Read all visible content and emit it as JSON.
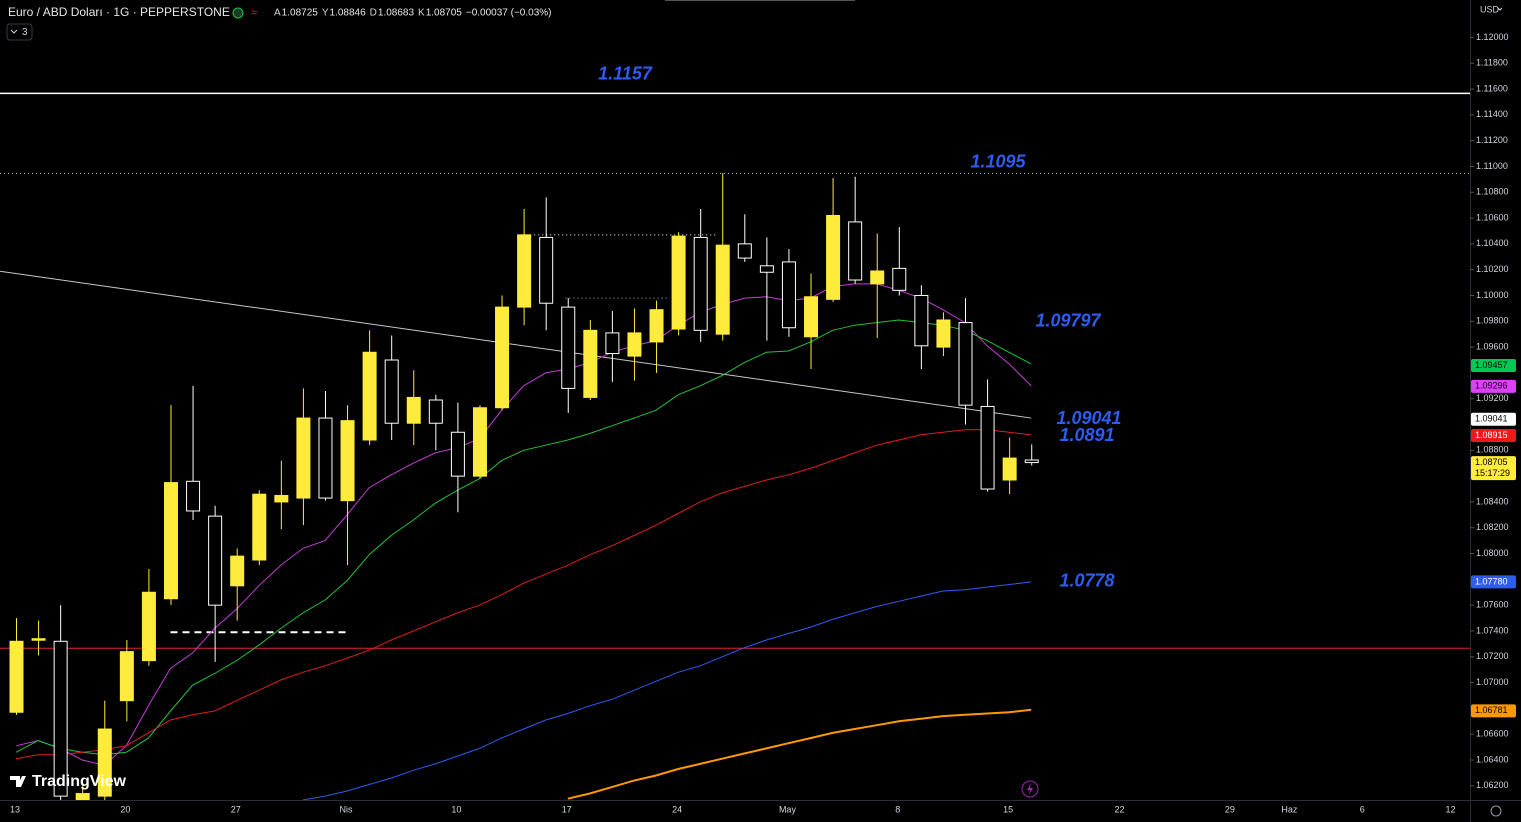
{
  "chart_data": {
    "type": "candlestick",
    "title": "Euro / ABD Doları · 1G · PEPPERSTONE",
    "ohlc_legend": [
      {
        "label": "A",
        "value": 1.08725
      },
      {
        "label": "Y",
        "value": 1.08846
      },
      {
        "label": "D",
        "value": 1.08683
      },
      {
        "label": "K",
        "value": 1.08705
      }
    ],
    "change_text": "−0.00037 (−0.03%)",
    "indicators_collapsed": "3",
    "currency": "USD",
    "logo": "TradingView",
    "up_color": "#ffeb3b",
    "down_color": "#ffffff",
    "categories": [
      "13",
      null,
      null,
      null,
      null,
      "20",
      null,
      null,
      null,
      null,
      "27",
      null,
      null,
      null,
      null,
      "Nis",
      null,
      null,
      null,
      null,
      "10",
      null,
      null,
      null,
      null,
      "17",
      null,
      null,
      null,
      null,
      "24",
      null,
      null,
      null,
      null,
      "May",
      null,
      null,
      null,
      null,
      "8",
      null,
      null,
      null,
      null,
      "15",
      null
    ],
    "future_xticks": [
      {
        "index": 50,
        "label": "22"
      },
      {
        "index": 55,
        "label": "29"
      },
      {
        "index": 57.7,
        "label": "Haz"
      },
      {
        "index": 61,
        "label": "6"
      },
      {
        "index": 65,
        "label": "12"
      }
    ],
    "open": [
      1.0677,
      1.0733,
      1.0732,
      1.0608,
      1.0612,
      1.0686,
      1.0717,
      1.0765,
      1.0856,
      1.0829,
      1.0775,
      1.0795,
      1.084,
      1.0843,
      1.0905,
      1.0841,
      1.0888,
      1.095,
      1.0901,
      1.0919,
      1.0894,
      1.086,
      1.0913,
      1.0991,
      1.1045,
      1.0991,
      1.0921,
      1.0971,
      1.0953,
      1.0964,
      1.0974,
      1.1045,
      1.097,
      1.104,
      1.1023,
      1.1026,
      1.0968,
      1.0997,
      1.1057,
      1.1009,
      1.1021,
      1.1,
      1.096,
      1.0979,
      1.0914,
      1.0857,
      1.08725
    ],
    "high": [
      1.075,
      1.0748,
      1.076,
      1.062,
      1.0686,
      1.0733,
      1.0788,
      1.0915,
      1.093,
      1.0837,
      1.0804,
      1.0849,
      1.0872,
      1.0928,
      1.0926,
      1.0915,
      1.0973,
      1.0969,
      1.0942,
      1.0923,
      1.0917,
      1.0915,
      1.1,
      1.1067,
      1.1076,
      1.0998,
      1.0981,
      1.0988,
      1.099,
      1.0996,
      1.1049,
      1.1067,
      1.1095,
      1.1063,
      1.1045,
      1.1036,
      1.1017,
      1.1091,
      1.1092,
      1.1048,
      1.1053,
      1.1008,
      1.0987,
      1.0998,
      1.0935,
      1.089,
      1.08846
    ],
    "low": [
      1.0675,
      1.0721,
      1.0608,
      1.0604,
      1.0606,
      1.067,
      1.0713,
      1.076,
      1.0826,
      1.0716,
      1.0748,
      1.0791,
      1.0819,
      1.0822,
      1.0841,
      1.0791,
      1.0884,
      1.0888,
      1.0884,
      1.088,
      1.0832,
      1.0858,
      1.0911,
      1.0977,
      1.0973,
      1.0909,
      1.0919,
      1.0933,
      1.0934,
      1.094,
      1.0969,
      1.0964,
      1.0965,
      1.1026,
      1.0965,
      1.0968,
      1.0943,
      1.0995,
      1.1009,
      1.0967,
      1.1,
      1.0943,
      1.0953,
      1.09,
      1.0848,
      1.0846,
      1.08683
    ],
    "close": [
      1.0732,
      1.0734,
      1.0612,
      1.0614,
      1.0664,
      1.0724,
      1.077,
      1.0855,
      1.0833,
      1.076,
      1.0798,
      1.0846,
      1.0845,
      1.0905,
      1.0843,
      1.0903,
      1.0956,
      1.0901,
      1.0921,
      1.0901,
      1.086,
      1.0913,
      1.0991,
      1.1047,
      1.0994,
      1.0928,
      1.0973,
      1.0955,
      1.0971,
      1.0989,
      1.1046,
      1.0973,
      1.1039,
      1.1029,
      1.1018,
      1.0975,
      1.0999,
      1.1062,
      1.1012,
      1.1019,
      1.1004,
      1.0961,
      1.0981,
      1.0915,
      1.085,
      1.0874,
      1.08705
    ],
    "series": [
      {
        "color": "#c43ed6",
        "width": 1,
        "values": [
          1.0651,
          1.0655,
          1.0649,
          1.064,
          1.0636,
          1.0651,
          1.0682,
          1.0711,
          1.0723,
          1.0742,
          1.0757,
          1.0775,
          1.0791,
          1.0804,
          1.081,
          1.083,
          1.0851,
          1.0861,
          1.087,
          1.0878,
          1.0882,
          1.0889,
          1.0911,
          1.093,
          1.094,
          1.0943,
          1.0948,
          1.0956,
          1.0961,
          1.0965,
          1.0977,
          1.0987,
          1.0993,
          1.0998,
          1.0999,
          1.0996,
          1.0998,
          1.1007,
          1.1009,
          1.1009,
          1.1004,
          1.0998,
          1.0989,
          1.0979,
          1.0961,
          1.0947,
          1.093
        ]
      },
      {
        "color": "#22c33a",
        "width": 1,
        "values": [
          1.0646,
          1.0655,
          1.0649,
          1.0646,
          1.0644,
          1.0646,
          1.0657,
          1.0678,
          1.0698,
          1.0707,
          1.0717,
          1.0729,
          1.0742,
          1.0754,
          1.0764,
          1.0779,
          1.0799,
          1.0814,
          1.0826,
          1.0839,
          1.0849,
          1.0858,
          1.0872,
          1.088,
          1.0884,
          1.0888,
          1.0893,
          1.0899,
          1.0905,
          1.0911,
          1.0923,
          1.093,
          1.0938,
          1.0948,
          1.0956,
          1.0957,
          1.0964,
          1.0973,
          1.0977,
          1.0979,
          1.0981,
          1.0979,
          1.0977,
          1.0973,
          1.0965,
          1.0956,
          1.0947
        ]
      },
      {
        "color": "#e01e1e",
        "width": 1,
        "values": [
          1.0641,
          1.0644,
          1.0644,
          1.0646,
          1.0648,
          1.0651,
          1.0661,
          1.0671,
          1.0675,
          1.0678,
          1.0686,
          1.0694,
          1.0702,
          1.0708,
          1.0713,
          1.0719,
          1.0725,
          1.0733,
          1.074,
          1.0747,
          1.0754,
          1.076,
          1.0768,
          1.0777,
          1.0784,
          1.0791,
          1.0799,
          1.0806,
          1.0814,
          1.0822,
          1.0831,
          1.084,
          1.0847,
          1.0852,
          1.0857,
          1.0861,
          1.0866,
          1.0872,
          1.0878,
          1.0884,
          1.0888,
          1.0892,
          1.0894,
          1.0896,
          1.0896,
          1.0894,
          1.0892
        ]
      },
      {
        "color": "#2f5cf0",
        "width": 1,
        "values": [
          null,
          null,
          null,
          null,
          null,
          null,
          null,
          null,
          null,
          null,
          null,
          null,
          null,
          1.0609,
          1.0612,
          1.0616,
          1.0621,
          1.0626,
          1.0632,
          1.0637,
          1.0643,
          1.0649,
          1.0657,
          1.0664,
          1.0671,
          1.0676,
          1.0682,
          1.0687,
          1.0694,
          1.0701,
          1.0708,
          1.0713,
          1.072,
          1.0727,
          1.0733,
          1.0738,
          1.0743,
          1.0749,
          1.0754,
          1.0759,
          1.0763,
          1.0767,
          1.0771,
          1.0772,
          1.0774,
          1.0776,
          1.0778
        ]
      },
      {
        "color": "#ff9800",
        "width": 2,
        "values": [
          null,
          null,
          null,
          null,
          null,
          null,
          null,
          null,
          null,
          null,
          null,
          null,
          null,
          null,
          null,
          null,
          null,
          null,
          null,
          null,
          null,
          null,
          null,
          null,
          null,
          1.061,
          1.0614,
          1.0619,
          1.0624,
          1.0628,
          1.0633,
          1.0637,
          1.0641,
          1.0645,
          1.0649,
          1.0653,
          1.0657,
          1.0661,
          1.0664,
          1.0667,
          1.067,
          1.0672,
          1.0674,
          1.0675,
          1.0676,
          1.0677,
          1.0679
        ]
      }
    ],
    "levels": [
      {
        "value": 1.1157,
        "color": "#ffffff",
        "style": "solid"
      },
      {
        "value": 1.1095,
        "color": "#bbbbbb",
        "style": "dotted"
      },
      {
        "value": 1.0727,
        "color": "#e0243a",
        "style": "solid"
      }
    ],
    "segments": [
      {
        "from": 0,
        "to": 46,
        "values": [
          1.1017,
          1.0905
        ],
        "color": "#c8c8c8",
        "style": "solid",
        "extend_left": true
      },
      {
        "from": 7,
        "to": 15,
        "values": [
          1.0739,
          1.0739
        ],
        "color": "#ffffff",
        "style": "dashed"
      },
      {
        "from": 23.3,
        "to": 31.8,
        "values": [
          1.1047,
          1.1047
        ],
        "color": "#ffffff",
        "style": "dotted"
      },
      {
        "from": 24.9,
        "to": 29.6,
        "values": [
          1.0998,
          1.0998
        ],
        "color": "#bbbbbb",
        "style": "dotted"
      }
    ],
    "annotations": [
      1.1157,
      1.1095,
      1.09797,
      1.09041,
      1.0891,
      1.0778
    ],
    "annotation_color": "#2f5cf0",
    "price_labels": [
      {
        "value": 1.09457,
        "label": "1.09457",
        "bg": "#00c853",
        "fg": "#000000"
      },
      {
        "value": 1.09296,
        "label": "1.09296",
        "bg": "#e040fb",
        "fg": "#000000"
      },
      {
        "value": 1.09041,
        "label": "1.09041",
        "bg": "#ffffff",
        "fg": "#000000"
      },
      {
        "value": 1.08915,
        "label": "1.08915",
        "bg": "#f01818",
        "fg": "#ffffff"
      },
      {
        "value": 1.08705,
        "label": "1.08705",
        "bg": "#ffeb3b",
        "fg": "#000000",
        "countdown": "15:17:29"
      },
      {
        "value": 1.0778,
        "label": "1.07780",
        "bg": "#2f5cf0",
        "fg": "#ffffff"
      },
      {
        "value": 1.06781,
        "label": "1.06781",
        "bg": "#ff9800",
        "fg": "#000000"
      }
    ],
    "ylim": [
      1.0609,
      1.1229
    ],
    "yticks": [
      {
        "value": 1.12,
        "label": "1.12000"
      },
      {
        "value": 1.118,
        "label": "1.11800"
      },
      {
        "value": 1.116,
        "label": "1.11600"
      },
      {
        "value": 1.114,
        "label": "1.11400"
      },
      {
        "value": 1.112,
        "label": "1.11200"
      },
      {
        "value": 1.11,
        "label": "1.11000"
      },
      {
        "value": 1.108,
        "label": "1.10800"
      },
      {
        "value": 1.106,
        "label": "1.10600"
      },
      {
        "value": 1.104,
        "label": "1.10400"
      },
      {
        "value": 1.102,
        "label": "1.10200"
      },
      {
        "value": 1.1,
        "label": "1.10000"
      },
      {
        "value": 1.098,
        "label": "1.09800"
      },
      {
        "value": 1.096,
        "label": "1.09600"
      },
      {
        "value": 1.092,
        "label": "1.09200"
      },
      {
        "value": 1.088,
        "label": "1.08800"
      },
      {
        "value": 1.084,
        "label": "1.08400"
      },
      {
        "value": 1.082,
        "label": "1.08200"
      },
      {
        "value": 1.08,
        "label": "1.08000"
      },
      {
        "value": 1.076,
        "label": "1.07600"
      },
      {
        "value": 1.074,
        "label": "1.07400"
      },
      {
        "value": 1.072,
        "label": "1.07200"
      },
      {
        "value": 1.07,
        "label": "1.07000"
      },
      {
        "value": 1.066,
        "label": "1.06600"
      },
      {
        "value": 1.064,
        "label": "1.06400"
      },
      {
        "value": 1.062,
        "label": "1.06200"
      }
    ]
  }
}
